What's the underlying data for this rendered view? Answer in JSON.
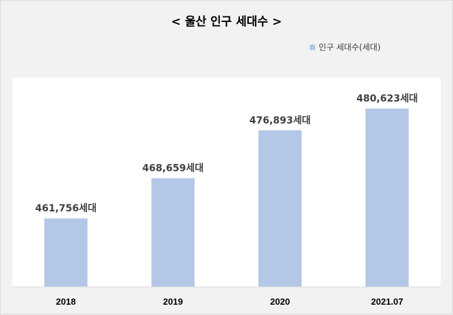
{
  "chart_data": {
    "type": "bar",
    "title": "< 울산 인구 세대수 >",
    "categories": [
      "2018",
      "2019",
      "2020",
      "2021.07"
    ],
    "series": [
      {
        "name": "인구 세대수(세대)",
        "values": [
          461756,
          468659,
          476893,
          480623
        ],
        "data_labels": [
          "461,756세대",
          "468,659세대",
          "476,893세대",
          "480,623세대"
        ],
        "color": "#b4c7e7"
      }
    ],
    "xlabel": "",
    "ylabel": "",
    "ylim": [
      450000,
      485000
    ],
    "grid": false,
    "legend_position": "top-right"
  }
}
